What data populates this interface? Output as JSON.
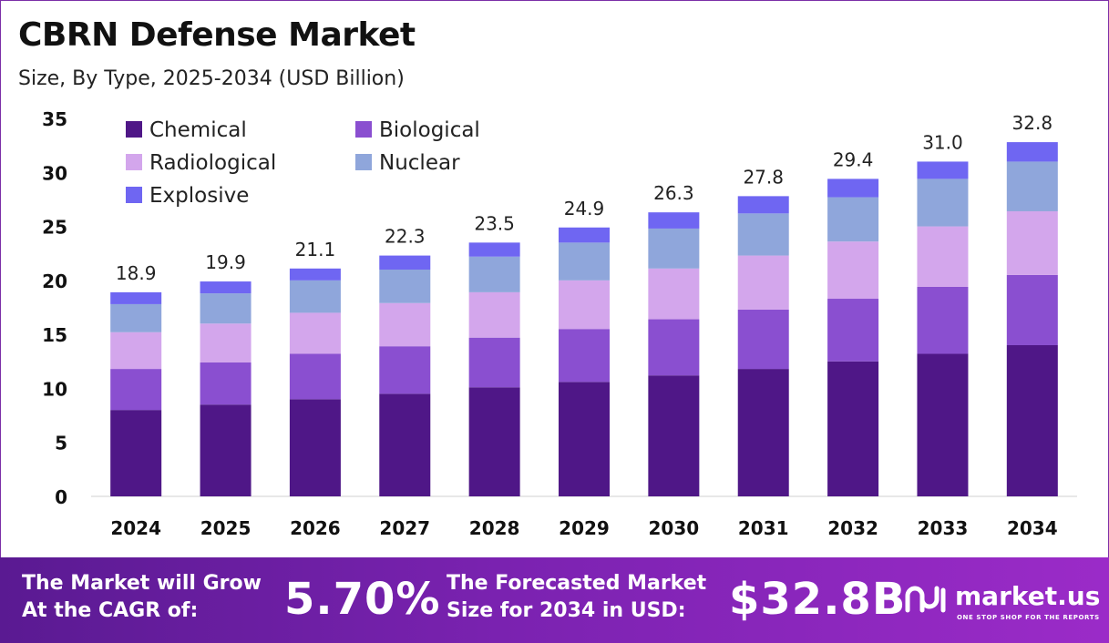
{
  "header": {
    "title": "CBRN Defense Market",
    "subtitle": "Size, By Type, 2025-2034 (USD Billion)"
  },
  "chart_data": {
    "type": "bar",
    "stacked": true,
    "categories": [
      "2024",
      "2025",
      "2026",
      "2027",
      "2028",
      "2029",
      "2030",
      "2031",
      "2032",
      "2033",
      "2034"
    ],
    "totals": [
      "18.9",
      "19.9",
      "21.1",
      "22.3",
      "23.5",
      "24.9",
      "26.3",
      "27.8",
      "29.4",
      "31.0",
      "32.8"
    ],
    "series": [
      {
        "name": "Chemical",
        "color": "#4f1787",
        "values": [
          8.0,
          8.5,
          9.0,
          9.5,
          10.1,
          10.6,
          11.2,
          11.8,
          12.5,
          13.2,
          14.0
        ]
      },
      {
        "name": "Biological",
        "color": "#8a4fd0",
        "values": [
          3.8,
          3.9,
          4.2,
          4.4,
          4.6,
          4.9,
          5.2,
          5.5,
          5.8,
          6.2,
          6.5
        ]
      },
      {
        "name": "Radiological",
        "color": "#d3a6ec",
        "values": [
          3.4,
          3.6,
          3.8,
          4.0,
          4.2,
          4.5,
          4.7,
          5.0,
          5.3,
          5.6,
          5.9
        ]
      },
      {
        "name": "Nuclear",
        "color": "#8fa6db",
        "values": [
          2.6,
          2.8,
          3.0,
          3.1,
          3.3,
          3.5,
          3.7,
          3.9,
          4.1,
          4.4,
          4.6
        ]
      },
      {
        "name": "Explosive",
        "color": "#6f66f2",
        "values": [
          1.1,
          1.1,
          1.1,
          1.3,
          1.3,
          1.4,
          1.5,
          1.6,
          1.7,
          1.6,
          1.8
        ]
      }
    ],
    "ylim": [
      0,
      35
    ],
    "yticks": [
      "0",
      "5",
      "10",
      "15",
      "20",
      "25",
      "30",
      "35"
    ],
    "grid": false,
    "legend_position": "top-left"
  },
  "footer": {
    "cagr_label": "The Market will Grow At the CAGR of:",
    "cagr_value": "5.70%",
    "forecast_label": "The Forecasted Market Size for 2034 in USD:",
    "forecast_value": "$32.8B",
    "brand_name": "market.us",
    "brand_tagline": "ONE STOP SHOP FOR THE REPORTS"
  }
}
